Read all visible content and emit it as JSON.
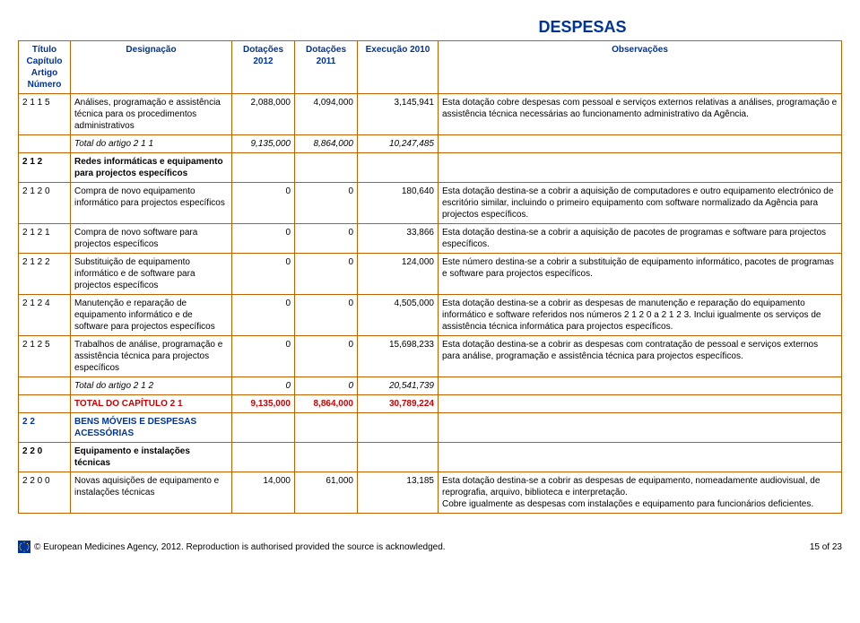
{
  "page": {
    "title": "DESPESAS",
    "footer_text": "© European Medicines Agency, 2012. Reproduction is authorised provided the source is acknowledged.",
    "page_number": "15 of 23"
  },
  "headers": {
    "col1_line1": "Título",
    "col1_line2": "Capítulo",
    "col1_line3": "Artigo",
    "col1_line4": "Número",
    "col2": "Designação",
    "col3": "Dotações 2012",
    "col4": "Dotações 2011",
    "col5": "Execução 2010",
    "col6": "Observações"
  },
  "rows": [
    {
      "code": "2 1 1 5",
      "desig": "Análises, programação e assistência técnica para os procedimentos administrativos",
      "d2012": "2,088,000",
      "d2011": "4,094,000",
      "exec": "3,145,941",
      "obs": "Esta dotação cobre despesas com pessoal e serviços externos relativas a análises, programação e assistência técnica necessárias ao funcionamento administrativo da Agência."
    },
    {
      "code": "",
      "desig": "Total do artigo 2 1 1",
      "d2012": "9,135,000",
      "d2011": "8,864,000",
      "exec": "10,247,485",
      "obs": "",
      "italicDesig": true,
      "italicNums": true
    },
    {
      "code": "2 1 2",
      "desig": "Redes informáticas e equipamento para projectos específicos",
      "d2012": "",
      "d2011": "",
      "exec": "",
      "obs": "",
      "bold": true
    },
    {
      "code": "2 1 2 0",
      "desig": "Compra de novo equipamento informático para projectos específicos",
      "d2012": "0",
      "d2011": "0",
      "exec": "180,640",
      "obs": "Esta dotação destina-se a cobrir a aquisição de computadores e outro equipamento electrónico de escritório similar, incluindo o primeiro equipamento com software normalizado da Agência para projectos específicos."
    },
    {
      "code": "2 1 2 1",
      "desig": "Compra de novo software para projectos específicos",
      "d2012": "0",
      "d2011": "0",
      "exec": "33,866",
      "obs": "Esta dotação destina-se a cobrir a aquisição de pacotes de programas e software para projectos específicos."
    },
    {
      "code": "2 1 2 2",
      "desig": "Substituição de equipamento informático e de software para projectos específicos",
      "d2012": "0",
      "d2011": "0",
      "exec": "124,000",
      "obs": "Este número destina-se a cobrir a substituição de equipamento informático, pacotes de programas e software para projectos específicos."
    },
    {
      "code": "2 1 2 4",
      "desig": "Manutenção e reparação de equipamento informático e de software para projectos específicos",
      "d2012": "0",
      "d2011": "0",
      "exec": "4,505,000",
      "obs": "Esta dotação destina-se a cobrir as despesas de manutenção e reparação do equipamento informático e software referidos nos números 2 1 2 0 a 2 1 2 3. Inclui igualmente os serviços de assistência técnica informática para projectos específicos."
    },
    {
      "code": "2 1 2 5",
      "desig": "Trabalhos de análise, programação e assistência técnica para projectos específicos",
      "d2012": "0",
      "d2011": "0",
      "exec": "15,698,233",
      "obs": "Esta dotação destina-se a cobrir as despesas com contratação de pessoal e serviços externos para análise, programação e assistência técnica para projectos específicos."
    },
    {
      "code": "",
      "desig": "Total do artigo 2 1 2",
      "d2012": "0",
      "d2011": "0",
      "exec": "20,541,739",
      "obs": "",
      "italicDesig": true,
      "italicNums": true
    },
    {
      "code": "",
      "desig": "TOTAL DO CAPÍTULO 2 1",
      "d2012": "9,135,000",
      "d2011": "8,864,000",
      "exec": "30,789,224",
      "obs": "",
      "red": true
    },
    {
      "code": "2 2",
      "desig": "BENS MÓVEIS E DESPESAS ACESSÓRIAS",
      "d2012": "",
      "d2011": "",
      "exec": "",
      "obs": "",
      "bold": true,
      "blue": true
    },
    {
      "code": "2 2 0",
      "desig": "Equipamento e instalações técnicas",
      "d2012": "",
      "d2011": "",
      "exec": "",
      "obs": "",
      "bold": true
    },
    {
      "code": "2 2 0 0",
      "desig": "Novas aquisições de equipamento e instalações técnicas",
      "d2012": "14,000",
      "d2011": "61,000",
      "exec": "13,185",
      "obs": "Esta dotação destina-se a cobrir as despesas de equipamento, nomeadamente audiovisual, de reprografia, arquivo, biblioteca e interpretação.\nCobre igualmente as despesas com instalações e equipamento para funcionários deficientes."
    }
  ]
}
